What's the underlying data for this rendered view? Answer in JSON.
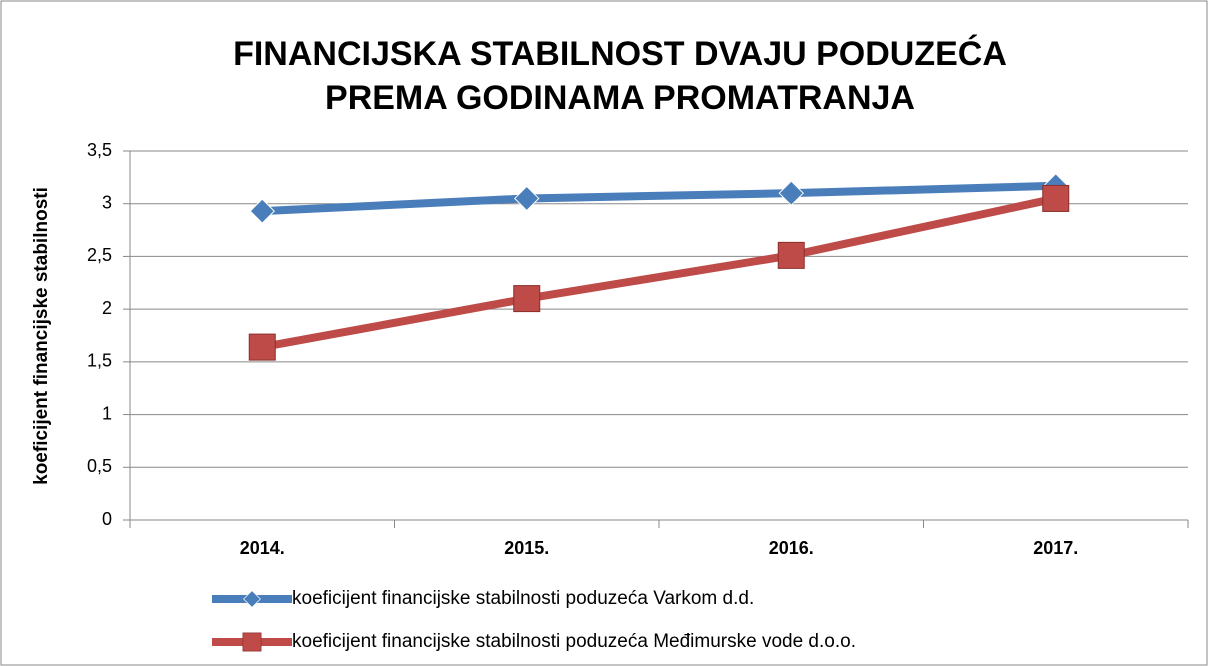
{
  "chart_data": {
    "type": "line",
    "title": [
      "FINANCIJSKA STABILNOST DVAJU PODUZEĆA",
      "PREMA GODINAMA PROMATRANJA"
    ],
    "y_label": "koeficijent financijske stabilnosti",
    "categories": [
      "2014.",
      "2015.",
      "2016.",
      "2017."
    ],
    "series": [
      {
        "name": "koeficijent financijske stabilnosti poduzeća Varkom d.d.",
        "color": "#4a7ebb",
        "marker": "diamond",
        "values": [
          2.93,
          3.05,
          3.1,
          3.17
        ]
      },
      {
        "name": "koeficijent financijske stabilnosti poduzeća Međimurske vode d.o.o.",
        "color": "#be4b48",
        "marker": "square",
        "values": [
          1.64,
          2.1,
          2.51,
          3.05
        ]
      }
    ],
    "ylim": [
      0,
      3.5
    ],
    "yticks": [
      0,
      {
        "value": 0.5,
        "label": "0,5"
      },
      1,
      {
        "value": 1.5,
        "label": "1,5"
      },
      2,
      {
        "value": 2.5,
        "label": "2,5"
      },
      3,
      {
        "value": 3.5,
        "label": "3,5"
      }
    ],
    "grid": true,
    "legend": "bottom"
  }
}
